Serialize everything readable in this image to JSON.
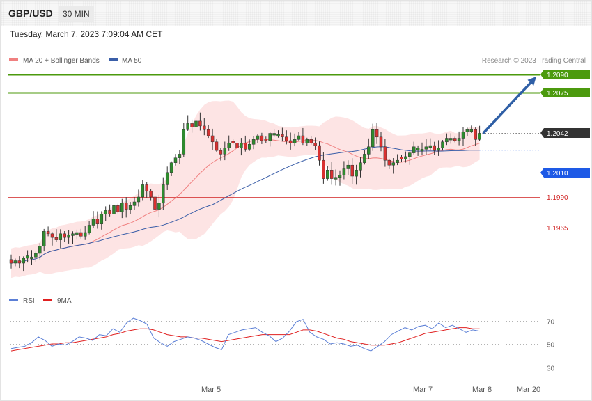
{
  "header": {
    "pair": "GBP/USD",
    "timeframe": "30 MIN",
    "datetime": "Tuesday, March 7, 2023 7:09:04 AM CET"
  },
  "legend": {
    "ma20_label": "MA 20 + Bollinger Bands",
    "ma50_label": "MA 50",
    "credit": "Research © 2023 Trading Central",
    "rsi_label": "RSI",
    "rsi_ma_label": "9MA"
  },
  "colors": {
    "up_candle": "#2e8b2e",
    "down_candle": "#d93030",
    "ma20": "#f08080",
    "ma50": "#3a5ea8",
    "bollinger_fill": "#fde4e4",
    "resistance": "#4c9a0e",
    "support_blue": "#1e5ae6",
    "support_red": "#d02020",
    "current": "#333333",
    "arrow": "#2f5fa6",
    "rsi": "#5b7fd6",
    "rsi_ma": "#e02020"
  },
  "chart_data": [
    {
      "type": "candlestick",
      "title": "GBP/USD",
      "timeframe": "30 MIN",
      "ylim": [
        1.189,
        1.211
      ],
      "x_ticks": [
        "Mar 5",
        "Mar 7",
        "Mar 8",
        "Mar 20"
      ],
      "levels": [
        {
          "label": "1.2090",
          "value": 1.209,
          "kind": "resistance"
        },
        {
          "label": "1.2075",
          "value": 1.2075,
          "kind": "resistance"
        },
        {
          "label": "1.2042",
          "value": 1.2042,
          "kind": "current"
        },
        {
          "label": "1.2010",
          "value": 1.201,
          "kind": "pivot"
        },
        {
          "label": "1.1990",
          "value": 1.199,
          "kind": "support"
        },
        {
          "label": "1.1965",
          "value": 1.1965,
          "kind": "support"
        }
      ],
      "closes": [
        1.1936,
        1.1938,
        1.1936,
        1.194,
        1.1942,
        1.1941,
        1.1944,
        1.195,
        1.1962,
        1.196,
        1.1957,
        1.1955,
        1.196,
        1.1957,
        1.1959,
        1.196,
        1.1961,
        1.1958,
        1.1961,
        1.1967,
        1.1972,
        1.1968,
        1.1976,
        1.1979,
        1.1976,
        1.1983,
        1.1978,
        1.1985,
        1.198,
        1.1983,
        1.1986,
        1.199,
        1.2,
        1.1995,
        1.199,
        1.198,
        1.1985,
        1.2,
        1.201,
        1.2018,
        1.2022,
        1.2025,
        1.2045,
        1.205,
        1.2047,
        1.2052,
        1.2048,
        1.2045,
        1.204,
        1.2035,
        1.2028,
        1.2025,
        1.203,
        1.2034,
        1.2034,
        1.203,
        1.2034,
        1.2029,
        1.2033,
        1.2037,
        1.204,
        1.2036,
        1.2036,
        1.2042,
        1.2042,
        1.2041,
        1.2039,
        1.2036,
        1.2034,
        1.2037,
        1.204,
        1.2034,
        1.2037,
        1.2034,
        1.2032,
        1.202,
        1.2005,
        1.2012,
        1.2005,
        1.2006,
        1.2008,
        1.2013,
        1.2016,
        1.2007,
        1.2012,
        1.2018,
        1.2025,
        1.2031,
        1.2045,
        1.2039,
        1.2031,
        1.202,
        1.2016,
        1.2018,
        1.202,
        1.2021,
        1.2023,
        1.2026,
        1.2031,
        1.203,
        1.2029,
        1.2031,
        1.2032,
        1.2028,
        1.203,
        1.2035,
        1.2038,
        1.2038,
        1.2036,
        1.2038,
        1.2043,
        1.2045,
        1.2045,
        1.2037,
        1.2042
      ],
      "series": [
        {
          "name": "MA 20 + Bollinger Bands"
        },
        {
          "name": "MA 50"
        }
      ]
    },
    {
      "type": "line",
      "title": "RSI",
      "ylim": [
        20,
        80
      ],
      "y_ticks": [
        30,
        50,
        70
      ],
      "series": [
        {
          "name": "RSI",
          "values": [
            46,
            47,
            48,
            51,
            56,
            53,
            48,
            50,
            49,
            52,
            56,
            55,
            53,
            58,
            57,
            63,
            60,
            68,
            72,
            70,
            67,
            55,
            51,
            48,
            52,
            54,
            56,
            55,
            53,
            50,
            47,
            45,
            58,
            60,
            62,
            63,
            64,
            60,
            57,
            52,
            55,
            61,
            69,
            71,
            60,
            56,
            54,
            50,
            51,
            50,
            48,
            49,
            46,
            44,
            48,
            52,
            58,
            61,
            64,
            62,
            65,
            66,
            63,
            68,
            64,
            66,
            63,
            60,
            62,
            61
          ]
        },
        {
          "name": "9MA",
          "values": [
            44,
            45,
            46,
            47,
            48,
            49,
            50,
            50,
            51,
            51,
            52,
            53,
            54,
            55,
            56,
            58,
            59,
            61,
            62,
            63,
            63,
            62,
            60,
            58,
            57,
            56,
            56,
            55,
            55,
            54,
            53,
            52,
            53,
            54,
            55,
            56,
            57,
            58,
            58,
            58,
            58,
            58,
            60,
            62,
            62,
            61,
            59,
            57,
            55,
            54,
            52,
            51,
            50,
            49,
            49,
            49,
            50,
            51,
            53,
            55,
            57,
            59,
            60,
            61,
            62,
            63,
            64,
            64,
            63,
            63
          ]
        }
      ]
    }
  ]
}
